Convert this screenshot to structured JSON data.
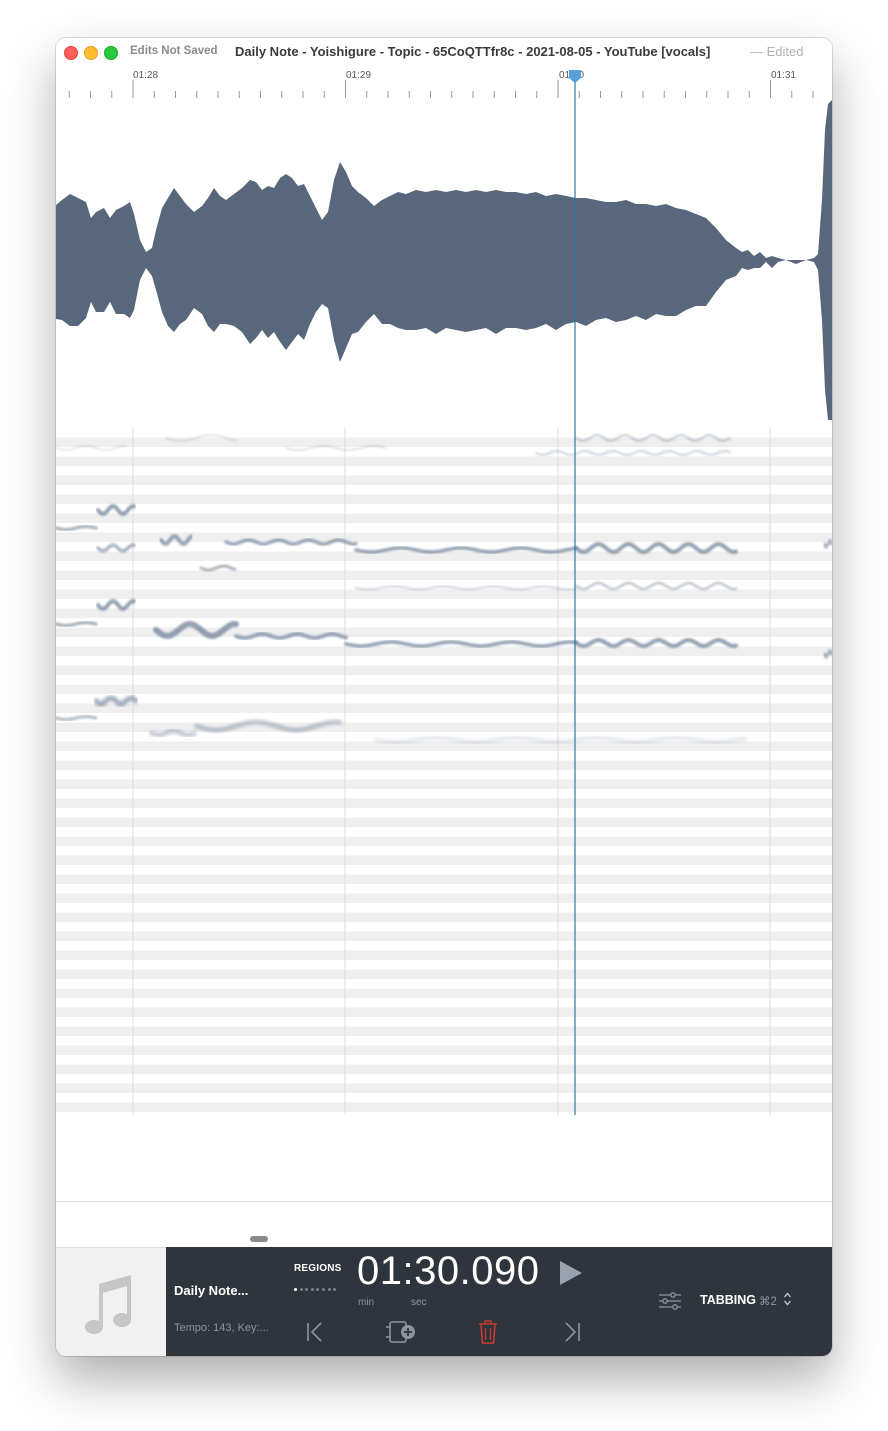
{
  "window": {
    "edits_status": "Edits Not Saved",
    "title": "Daily Note - Yoishigure - Topic - 65CoQTTfr8c - 2021-08-05 - YouTube [vocals]",
    "edited_suffix": "— Edited"
  },
  "timeline": {
    "labels": [
      "01:28",
      "01:29",
      "01:30",
      "01:31"
    ],
    "playhead_time": "01:30.090"
  },
  "song": {
    "name": "Daily Note...",
    "meta": "Tempo: 143, Key:..."
  },
  "transport": {
    "regions_label": "REGIONS",
    "region_count": 8,
    "current_region": 1,
    "time_display": "01:30.090",
    "min_label": "min",
    "sec_label": "sec"
  },
  "mode": {
    "label": "TABBING",
    "shortcut": "⌘2"
  },
  "colors": {
    "waveform": "#59677c",
    "playhead": "#2f7aa1",
    "pitch": "#6f829a",
    "panel": "#2f353d",
    "delete": "#c63a35"
  },
  "icons": [
    "music-note-icon",
    "play-icon",
    "skip-to-start-icon",
    "add-region-icon",
    "trash-icon",
    "skip-to-end-icon",
    "mixer-sliders-icon",
    "chevron-updown-icon",
    "playhead-marker-icon"
  ]
}
